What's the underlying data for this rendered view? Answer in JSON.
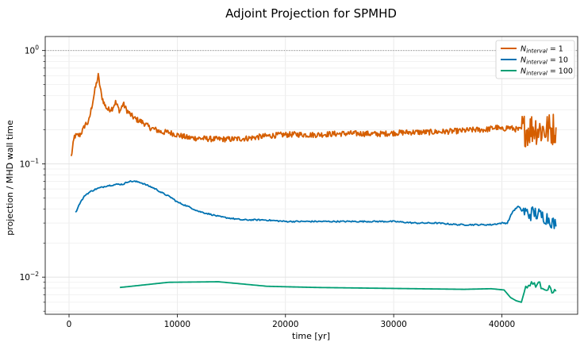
{
  "chart_data": {
    "type": "line",
    "title": "Adjoint Projection for SPMHD",
    "xlabel": "time [yr]",
    "ylabel": "projection / MHD wall time",
    "xlim": [
      -2200,
      47000
    ],
    "ylim": [
      0.0047,
      1.33
    ],
    "yscale": "log",
    "grid": true,
    "reference_line": {
      "y": 1.0,
      "style": "dotted"
    },
    "legend_position": "top-right",
    "x_ticks": [
      {
        "value": 0,
        "label": "0"
      },
      {
        "value": 10000,
        "label": "10000"
      },
      {
        "value": 20000,
        "label": "20000"
      },
      {
        "value": 30000,
        "label": "30000"
      },
      {
        "value": 40000,
        "label": "40000"
      }
    ],
    "y_ticks": [
      {
        "value": 0.01,
        "base": "10",
        "exp": "−2"
      },
      {
        "value": 0.1,
        "base": "10",
        "exp": "−1"
      },
      {
        "value": 1,
        "base": "10",
        "exp": "0"
      }
    ],
    "series": [
      {
        "name": "N_interval = 1",
        "legend_main": "N",
        "legend_sub": "interval",
        "legend_rest": " = 1",
        "color": "#d55e00",
        "noisy": true,
        "x": [
          200,
          500,
          1000,
          1300,
          1500,
          1800,
          2100,
          2400,
          2700,
          3000,
          3300,
          3600,
          4000,
          4300,
          4700,
          5000,
          5300,
          5700,
          6100,
          6500,
          6900,
          7400,
          8000,
          8600,
          9200,
          10000,
          11000,
          12000,
          13500,
          15000,
          16500,
          18000,
          19500,
          21000,
          22500,
          24000,
          25500,
          27000,
          28500,
          30000,
          31500,
          33000,
          34500,
          36000,
          37500,
          38500,
          39500,
          40000,
          40500,
          41000,
          41500,
          42000,
          42500,
          43000,
          43500,
          44000,
          44500,
          45000
        ],
        "y": [
          0.115,
          0.175,
          0.18,
          0.2,
          0.225,
          0.23,
          0.32,
          0.45,
          0.6,
          0.4,
          0.33,
          0.3,
          0.31,
          0.35,
          0.29,
          0.34,
          0.3,
          0.27,
          0.25,
          0.24,
          0.23,
          0.21,
          0.2,
          0.19,
          0.19,
          0.18,
          0.17,
          0.168,
          0.165,
          0.165,
          0.168,
          0.175,
          0.18,
          0.182,
          0.18,
          0.183,
          0.185,
          0.185,
          0.183,
          0.187,
          0.19,
          0.19,
          0.192,
          0.195,
          0.2,
          0.2,
          0.21,
          0.2,
          0.21,
          0.205,
          0.2,
          0.2,
          0.2,
          0.21,
          0.2,
          0.2,
          0.2,
          0.21
        ]
      },
      {
        "name": "N_interval = 10",
        "legend_main": "N",
        "legend_sub": "interval",
        "legend_rest": " = 10",
        "color": "#0072b2",
        "noisy": true,
        "x": [
          600,
          1000,
          1500,
          2000,
          2500,
          3000,
          3500,
          4000,
          4500,
          5000,
          5500,
          6000,
          6500,
          7000,
          7500,
          8000,
          8500,
          9000,
          9500,
          10000,
          11000,
          12000,
          13000,
          14000,
          15000,
          16000,
          18000,
          20000,
          22000,
          24000,
          26000,
          28000,
          30000,
          32000,
          34000,
          36000,
          38000,
          39000,
          40000,
          40500,
          41000,
          41500,
          42000,
          42500,
          43000,
          43500,
          44000,
          44500,
          45000
        ],
        "y": [
          0.037,
          0.045,
          0.053,
          0.057,
          0.06,
          0.062,
          0.064,
          0.065,
          0.066,
          0.066,
          0.07,
          0.07,
          0.069,
          0.066,
          0.063,
          0.06,
          0.056,
          0.053,
          0.05,
          0.046,
          0.042,
          0.038,
          0.036,
          0.034,
          0.033,
          0.032,
          0.032,
          0.031,
          0.031,
          0.031,
          0.031,
          0.031,
          0.031,
          0.03,
          0.03,
          0.029,
          0.029,
          0.029,
          0.03,
          0.03,
          0.038,
          0.042,
          0.038,
          0.036,
          0.037,
          0.035,
          0.034,
          0.032,
          0.028
        ]
      },
      {
        "name": "N_interval = 100",
        "legend_main": "N",
        "legend_sub": "interval",
        "legend_rest": " = 100",
        "color": "#009e73",
        "noisy": true,
        "x": [
          4700,
          9200,
          13800,
          18300,
          22900,
          27400,
          32000,
          36500,
          39000,
          40200,
          40800,
          41300,
          41800,
          42200,
          42600,
          43000,
          43500,
          44000,
          44500,
          45000
        ],
        "y": [
          0.0081,
          0.009,
          0.0091,
          0.0083,
          0.0081,
          0.008,
          0.0079,
          0.0078,
          0.0079,
          0.0077,
          0.0066,
          0.0062,
          0.006,
          0.0082,
          0.0085,
          0.0088,
          0.0085,
          0.0081,
          0.0078,
          0.0075
        ]
      }
    ]
  }
}
